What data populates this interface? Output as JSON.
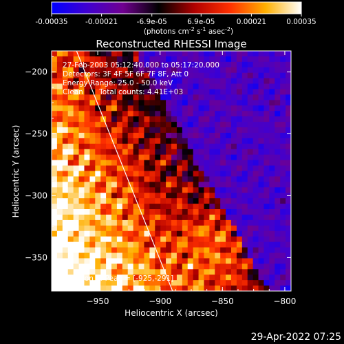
{
  "colorbar": {
    "tick_labels": [
      "-0.00035",
      "-0.00021",
      "-6.9e-05",
      "6.9e-05",
      "0.00021",
      "0.00035"
    ],
    "tick_values": [
      -0.00035,
      -0.00021,
      -6.9e-05,
      6.9e-05,
      0.00021,
      0.00035
    ],
    "range": [
      -0.00035,
      0.00035
    ],
    "units_prefix": "(photons cm",
    "units_sup1": "-2",
    "units_mid": " s",
    "units_sup2": "-1",
    "units_suffix": " asec",
    "units_sup3": "-2",
    "units_end": ")",
    "colormap": [
      "#0000ff",
      "#4000d0",
      "#700090",
      "#000000",
      "#b00000",
      "#ff3000",
      "#ffb000",
      "#ffffff"
    ]
  },
  "chart_data": {
    "type": "heatmap",
    "title": "Reconstructed RHESSI Image",
    "xlabel": "Heliocentric X (arcsec)",
    "ylabel": "Heliocentric Y (arcsec)",
    "xlim": [
      -987,
      -795
    ],
    "ylim": [
      -377,
      -183
    ],
    "x_ticks": [
      -950,
      -900,
      -850,
      -800
    ],
    "x_tick_labels": [
      "−950",
      "−900",
      "−850",
      "−800"
    ],
    "y_ticks": [
      -200,
      -250,
      -300,
      -350
    ],
    "y_tick_labels": [
      "−200",
      "−250",
      "−300",
      "−350"
    ],
    "grid": false,
    "limb_line": [
      [
        -967,
        -183
      ],
      [
        -890,
        -377
      ]
    ],
    "peak_marker": [
      -925,
      -291
    ],
    "annotations": [
      "27-Feb-2003 05:12:40.000 to 05:17:20.000",
      "Detectors: 3F 4F 5F 6F 7F 8F, Att 0",
      "Energy Range: 25.0 - 50.0 keV",
      "Clean       Total counts: 4.41E+03"
    ],
    "peak_label": "Position of Peak = [-925,-291]"
  },
  "timestamp": "29-Apr-2022 07:25"
}
